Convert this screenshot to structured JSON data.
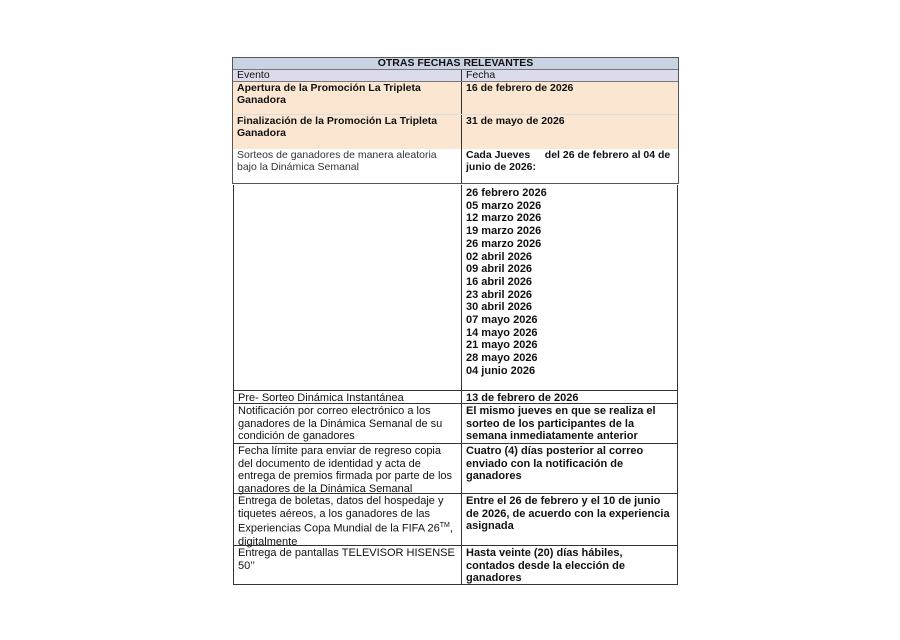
{
  "table_title": "OTRAS FECHAS RELEVANTES",
  "headers": {
    "event": "Evento",
    "date": "Fecha"
  },
  "top_rows": [
    {
      "event": "Apertura de la Promoción La Tripleta Ganadora",
      "date": "16 de febrero de 2026"
    },
    {
      "event": "Finalización de la Promoción La Tripleta Ganadora",
      "date": "31 de mayo de 2026"
    },
    {
      "event": "Sorteos de ganadores de manera aleatoria bajo la Dinámica Semanal",
      "date": "Cada Jueves     del 26 de febrero al 04 de junio de 2026:"
    }
  ],
  "weekly_dates": [
    "26 febrero 2026",
    "05 marzo 2026",
    "12 marzo 2026",
    "19 marzo 2026",
    "26 marzo 2026",
    "02 abril 2026",
    "09 abril 2026",
    "16 abril 2026",
    "23 abril 2026",
    "30 abril 2026",
    "07 mayo 2026",
    "14 mayo 2026",
    "21 mayo 2026",
    "28 mayo 2026",
    "04 junio 2026"
  ],
  "bottom_rows": [
    {
      "event": "Pre- Sorteo Dinámica Instantánea",
      "date": "13 de febrero de 2026"
    },
    {
      "event": "Notificación por correo electrónico a los ganadores de la Dinámica Semanal de su condición de ganadores",
      "date": "El mismo jueves en que se realiza el sorteo de los participantes de la semana inmediatamente anterior"
    },
    {
      "event": "Fecha límite para enviar de regreso copia del documento de identidad y acta de entrega de premios firmada por parte de los ganadores de la Dinámica Semanal",
      "date": "Cuatro (4) días posterior al correo enviado con la notificación de ganadores"
    },
    {
      "event": "Entrega de boletas, datos del hospedaje y tiquetes aéreos, a los ganadores de las Experiencias Copa Mundial de la FIFA 26",
      "event_sup": "TM",
      "event_tail": ", digitalmente",
      "date": "Entre el 26 de febrero y el 10 de junio de 2026, de acuerdo con la experiencia asignada"
    },
    {
      "event": "Entrega de pantallas TELEVISOR HISENSE 50’’",
      "date": "Hasta veinte (20) días hábiles, contados desde la elección de ganadores"
    }
  ]
}
